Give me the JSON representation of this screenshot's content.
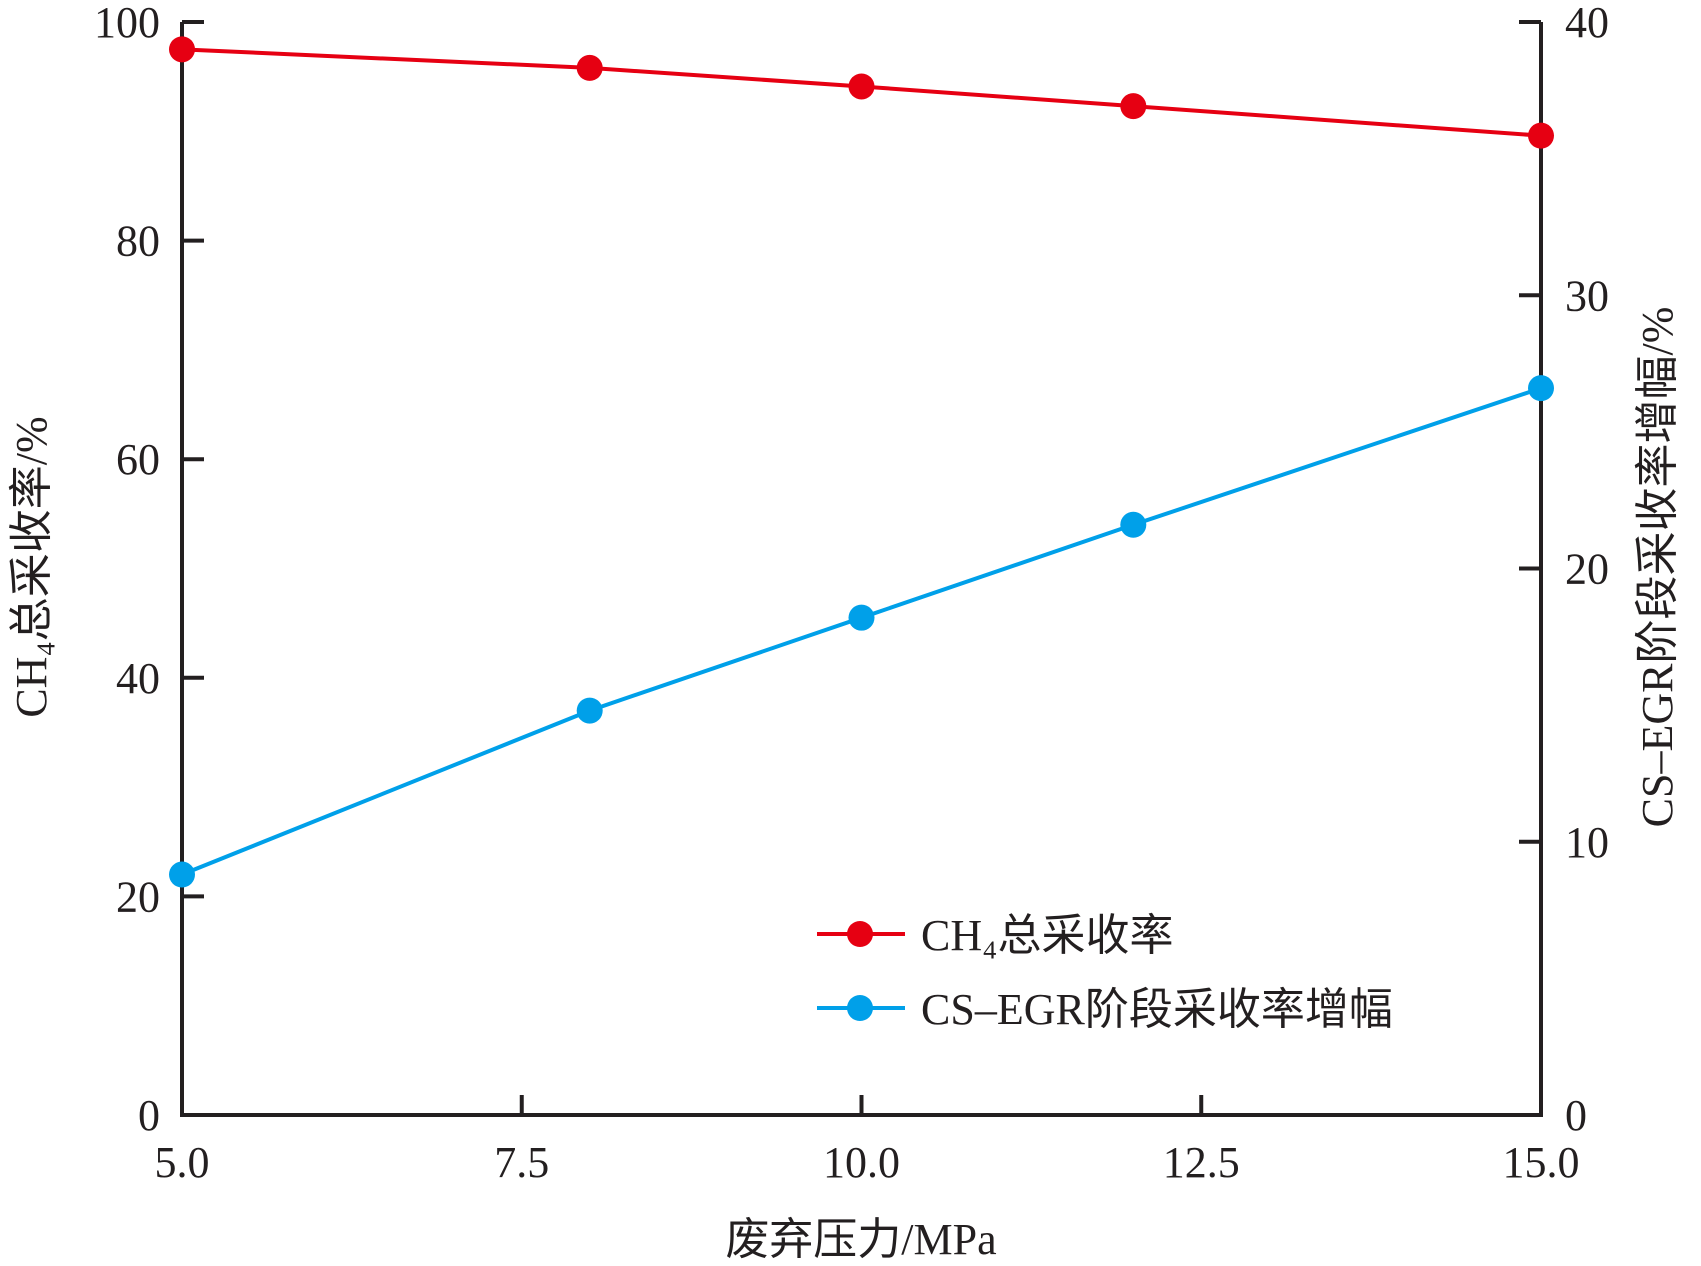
{
  "chart_data": {
    "type": "line",
    "xlabel": "废弃压力/MPa",
    "ylabel_left": "CH₄总采收率/%",
    "ylabel_right": "CS–EGR阶段采收率增幅/%",
    "xlim": [
      5,
      15
    ],
    "ylim_left": [
      0,
      100
    ],
    "ylim_right": [
      0,
      40
    ],
    "xticks": [
      "5.0",
      "7.5",
      "10.0",
      "12.5",
      "15.0"
    ],
    "yticks_left": [
      "0",
      "20",
      "40",
      "60",
      "80",
      "100"
    ],
    "yticks_right": [
      "0",
      "10",
      "20",
      "30",
      "40"
    ],
    "legend_position": "bottom-right",
    "series": [
      {
        "name": "CH₄总采收率",
        "axis": "left",
        "color": "#e60012",
        "x": [
          5,
          8,
          10,
          12,
          15
        ],
        "y": [
          97.5,
          95.8,
          94.1,
          92.3,
          89.6
        ]
      },
      {
        "name": "CS–EGR阶段采收率增幅",
        "axis": "right",
        "color": "#00a0e9",
        "x": [
          5,
          8,
          10,
          12,
          15
        ],
        "y": [
          8.8,
          14.8,
          18.2,
          21.6,
          26.6
        ]
      }
    ]
  }
}
